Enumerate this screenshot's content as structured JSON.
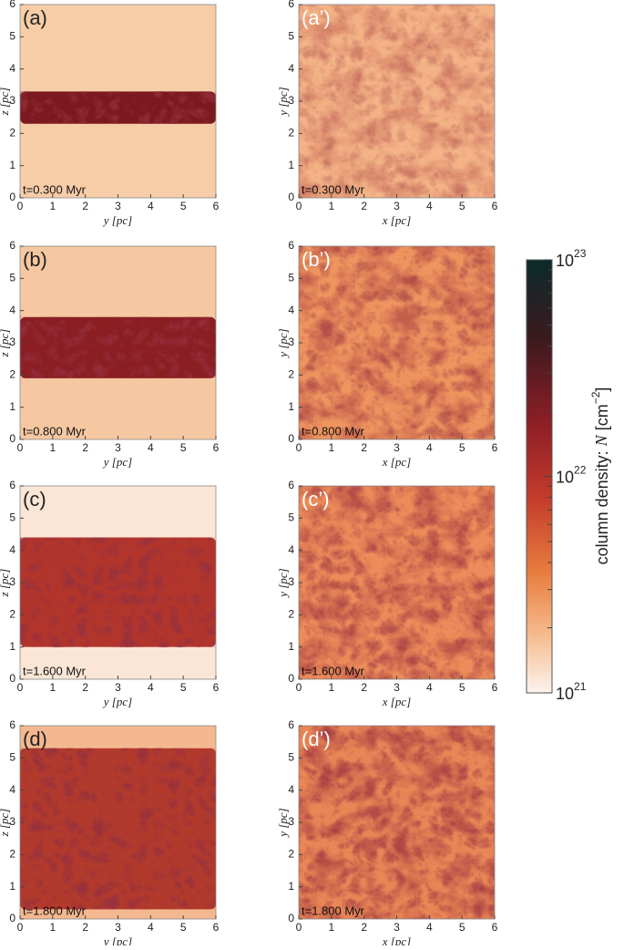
{
  "axis": {
    "lim": [
      0,
      6
    ],
    "ticks": [
      0,
      1,
      2,
      3,
      4,
      5,
      6
    ]
  },
  "panels": [
    {
      "label": "(a)",
      "time": "t=0.300 Myr",
      "xlabel": "y [pc]",
      "ylabel": "z [pc]"
    },
    {
      "label": "(a’)",
      "time": "t=0.300 Myr",
      "xlabel": "x [pc]",
      "ylabel": "y [pc]"
    },
    {
      "label": "(b)",
      "time": "t=0.800 Myr",
      "xlabel": "y [pc]",
      "ylabel": "z [pc]"
    },
    {
      "label": "(b’)",
      "time": "t=0.800 Myr",
      "xlabel": "x [pc]",
      "ylabel": "y [pc]"
    },
    {
      "label": "(c)",
      "time": "t=1.600 Myr",
      "xlabel": "y [pc]",
      "ylabel": "z [pc]"
    },
    {
      "label": "(c’)",
      "time": "t=1.600 Myr",
      "xlabel": "x [pc]",
      "ylabel": "y [pc]"
    },
    {
      "label": "(d)",
      "time": "t=1.800 Myr",
      "xlabel": "y [pc]",
      "ylabel": "z [pc]"
    },
    {
      "label": "(d’)",
      "time": "t=1.800 Myr",
      "xlabel": "x [pc]",
      "ylabel": "y [pc]"
    }
  ],
  "colorbar": {
    "lim": [
      1e+21,
      1e+23
    ],
    "log": true,
    "ticks": [
      {
        "value": 1e+21,
        "base": "10",
        "exponent": "21"
      },
      {
        "value": 1e+22,
        "base": "10",
        "exponent": "22"
      },
      {
        "value": 1e+23,
        "base": "10",
        "exponent": "23"
      }
    ],
    "minor_ticks": [
      2e+21,
      3e+21,
      4e+21,
      5e+21,
      6e+21,
      7e+21,
      8e+21,
      9e+21,
      2e+22,
      3e+22,
      4e+22,
      5e+22,
      6e+22,
      7e+22,
      8e+22,
      9e+22
    ],
    "label_parts": [
      "column density: ",
      "N",
      " [cm",
      "−2",
      "]"
    ]
  }
}
